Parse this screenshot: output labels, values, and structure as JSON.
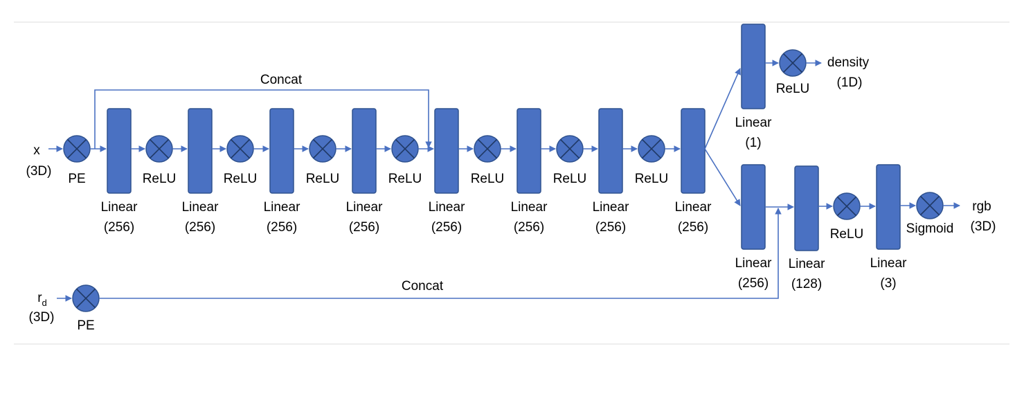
{
  "inputs": {
    "x": {
      "label": "x",
      "dims": "(3D)"
    },
    "rd": {
      "label": "r",
      "subscript": "d",
      "dims": "(3D)"
    }
  },
  "pe_label": "PE",
  "concat_label": "Concat",
  "relu_label": "ReLU",
  "sigmoid_label": "Sigmoid",
  "linear_label": "Linear",
  "trunk_layers": [
    "(256)",
    "(256)",
    "(256)",
    "(256)",
    "(256)",
    "(256)",
    "(256)",
    "(256)"
  ],
  "density_branch": {
    "layer": "(1)",
    "output": "density",
    "output_dims": "(1D)"
  },
  "rgb_branch": {
    "layers": [
      "(256)",
      "(128)",
      "(3)"
    ],
    "output": "rgb",
    "output_dims": "(3D)"
  },
  "colors": {
    "block": "#4a71c2",
    "block_border": "#2f528f",
    "wire": "#4a71c2",
    "mark": "#1f3864"
  }
}
